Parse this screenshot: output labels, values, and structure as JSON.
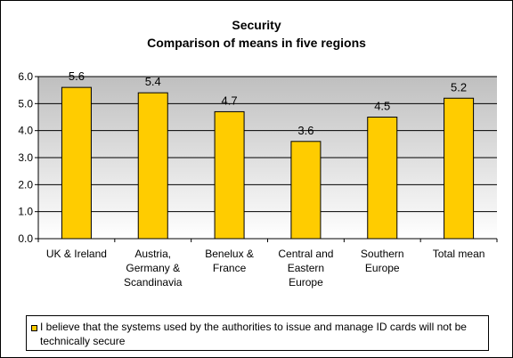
{
  "title_line1": "Security",
  "title_line2": "Comparison of means in five regions",
  "chart_data": {
    "type": "bar",
    "categories": [
      [
        "UK & Ireland"
      ],
      [
        "Austria,",
        "Germany &",
        "Scandinavia"
      ],
      [
        "Benelux &",
        "France"
      ],
      [
        "Central and",
        "Eastern",
        "Europe"
      ],
      [
        "Southern",
        "Europe"
      ],
      [
        "Total mean"
      ]
    ],
    "series": [
      {
        "name": "I believe that the systems used by the authorities to issue and manage ID cards will not be technically secure",
        "values": [
          5.6,
          5.4,
          4.7,
          3.6,
          4.5,
          5.2
        ],
        "labels": [
          "5.6",
          "5.4",
          "4.7",
          "3.6",
          "4.5",
          "5.2"
        ]
      }
    ],
    "ylim": [
      0,
      6
    ],
    "yticks": [
      "0.0",
      "1.0",
      "2.0",
      "3.0",
      "4.0",
      "5.0",
      "6.0"
    ],
    "grid": true,
    "legend_position": "bottom",
    "colors": {
      "bar": "#ffcc00",
      "plot_bg_top": "#bfbfbf",
      "plot_bg_bottom": "#ffffff",
      "grid": "#000000"
    }
  }
}
